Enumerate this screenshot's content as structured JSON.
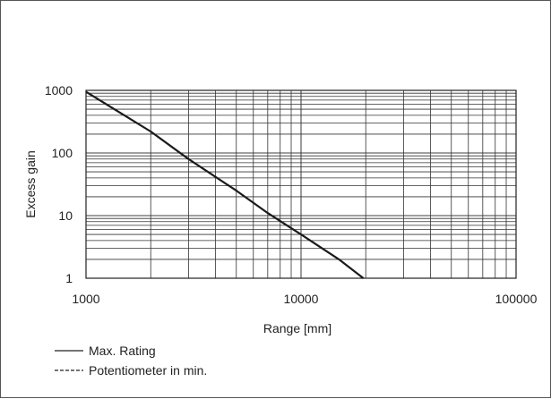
{
  "chart_data": {
    "type": "line",
    "xlabel": "Range [mm]",
    "ylabel": "Excess gain",
    "x_scale": "log",
    "y_scale": "log",
    "xlim": [
      1000,
      100000
    ],
    "ylim": [
      1,
      1000
    ],
    "x_ticks": [
      {
        "value": 1000,
        "label": "1000"
      },
      {
        "value": 10000,
        "label": "10000"
      },
      {
        "value": 100000,
        "label": "100000"
      }
    ],
    "y_ticks": [
      {
        "value": 1,
        "label": "1"
      },
      {
        "value": 10,
        "label": "10"
      },
      {
        "value": 100,
        "label": "100"
      },
      {
        "value": 1000,
        "label": "1000"
      }
    ],
    "grid": true,
    "series": [
      {
        "name": "Max. Rating",
        "style": "solid",
        "color": "#1a1a1a",
        "points": [
          {
            "x": 1000,
            "y": 950
          },
          {
            "x": 2000,
            "y": 220
          },
          {
            "x": 3000,
            "y": 80
          },
          {
            "x": 5000,
            "y": 25
          },
          {
            "x": 7000,
            "y": 11
          },
          {
            "x": 10000,
            "y": 5
          },
          {
            "x": 15000,
            "y": 2
          },
          {
            "x": 19500,
            "y": 1
          }
        ]
      }
    ],
    "legend": {
      "position": "bottom-left",
      "entries": [
        {
          "label": "Max. Rating",
          "style": "solid"
        },
        {
          "label": "Potentiometer in min.",
          "style": "dashed"
        }
      ]
    }
  }
}
